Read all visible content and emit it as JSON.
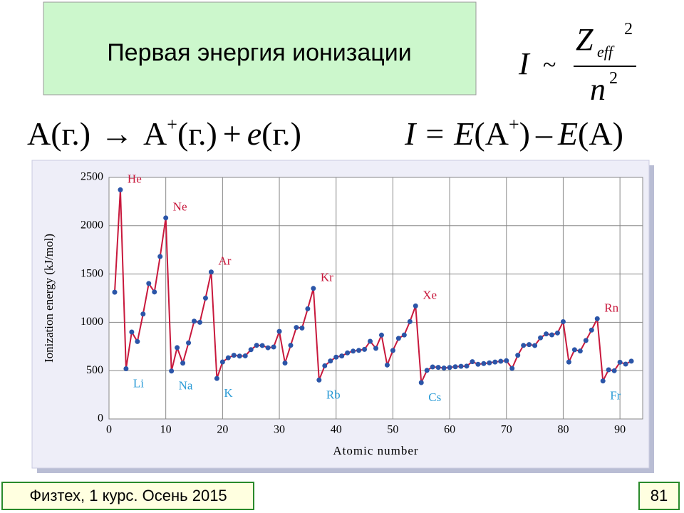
{
  "slide": {
    "title": "Первая энергия ионизации",
    "formula": {
      "lhs": "I",
      "sim": "~",
      "z": "Z",
      "eff": "eff",
      "z_power": "2",
      "n": "n",
      "n_power": "2"
    },
    "equation1": {
      "a": "A(г.)",
      "arrow": "→",
      "a2": "A",
      "plus_charge": "+",
      "ion_state": "(г.)",
      "plus": "+",
      "e": "e",
      "e_state": "(г.)"
    },
    "equation2": {
      "i": "I",
      "eq": "=",
      "e1": "E",
      "a_ion": "(A",
      "plus_charge": "+",
      "close": ")",
      "minus": "–",
      "e2": "E",
      "a": "(A)"
    },
    "footer": "Физтех, 1 курс. Осень 2015",
    "page_number": "81"
  },
  "chart_data": {
    "type": "line",
    "y_label": "Ionization energy (kJ/mol)",
    "x_label": "Atomic number",
    "line_color": "#c8183c",
    "marker_color": "#2b55a8",
    "grid": true,
    "xlim": [
      0,
      94
    ],
    "xticks": [
      0,
      10,
      20,
      30,
      40,
      50,
      60,
      70,
      80,
      90
    ],
    "ylim": [
      0,
      2500
    ],
    "yticks": [
      0,
      500,
      1000,
      1500,
      2000,
      2500
    ],
    "x": [
      1,
      2,
      3,
      4,
      5,
      6,
      7,
      8,
      9,
      10,
      11,
      12,
      13,
      14,
      15,
      16,
      17,
      18,
      19,
      20,
      21,
      22,
      23,
      24,
      25,
      26,
      27,
      28,
      29,
      30,
      31,
      32,
      33,
      34,
      35,
      36,
      37,
      38,
      39,
      40,
      41,
      42,
      43,
      44,
      45,
      46,
      47,
      48,
      49,
      50,
      51,
      52,
      53,
      54,
      55,
      56,
      57,
      58,
      59,
      60,
      61,
      62,
      63,
      64,
      65,
      66,
      67,
      68,
      69,
      70,
      71,
      72,
      73,
      74,
      75,
      76,
      77,
      78,
      79,
      80,
      81,
      82,
      83,
      84,
      85,
      86,
      87,
      88,
      89,
      90,
      91,
      92
    ],
    "values": [
      1312,
      2372,
      520,
      900,
      801,
      1086,
      1402,
      1314,
      1681,
      2081,
      496,
      738,
      578,
      787,
      1012,
      1000,
      1251,
      1521,
      419,
      590,
      633,
      659,
      651,
      653,
      717,
      762,
      760,
      737,
      745,
      906,
      579,
      762,
      947,
      941,
      1140,
      1351,
      403,
      550,
      600,
      640,
      652,
      684,
      702,
      710,
      720,
      804,
      731,
      868,
      558,
      709,
      834,
      869,
      1008,
      1170,
      376,
      503,
      538,
      534,
      527,
      533,
      540,
      545,
      547,
      593,
      566,
      573,
      581,
      589,
      597,
      603,
      524,
      659,
      761,
      770,
      760,
      840,
      880,
      870,
      890,
      1007,
      589,
      716,
      703,
      812,
      920,
      1037,
      393,
      509,
      499,
      587,
      568,
      598
    ],
    "annotations": [
      {
        "text": "He",
        "x": 2,
        "color": "#c8183c",
        "anchor": "above"
      },
      {
        "text": "Ne",
        "x": 10,
        "color": "#c8183c",
        "anchor": "above"
      },
      {
        "text": "Ar",
        "x": 18,
        "color": "#c8183c",
        "anchor": "above"
      },
      {
        "text": "Kr",
        "x": 36,
        "color": "#c8183c",
        "anchor": "above"
      },
      {
        "text": "Xe",
        "x": 54,
        "color": "#c8183c",
        "anchor": "above"
      },
      {
        "text": "Rn",
        "x": 86,
        "color": "#c8183c",
        "anchor": "above"
      },
      {
        "text": "Li",
        "x": 3,
        "color": "#2a9bd6",
        "anchor": "below"
      },
      {
        "text": "Na",
        "x": 11,
        "color": "#2a9bd6",
        "anchor": "below"
      },
      {
        "text": "K",
        "x": 19,
        "color": "#2a9bd6",
        "anchor": "below"
      },
      {
        "text": "Rb",
        "x": 37,
        "color": "#2a9bd6",
        "anchor": "below"
      },
      {
        "text": "Cs",
        "x": 55,
        "color": "#2a9bd6",
        "anchor": "below"
      },
      {
        "text": "Fr",
        "x": 87,
        "color": "#2a9bd6",
        "anchor": "below"
      }
    ]
  }
}
